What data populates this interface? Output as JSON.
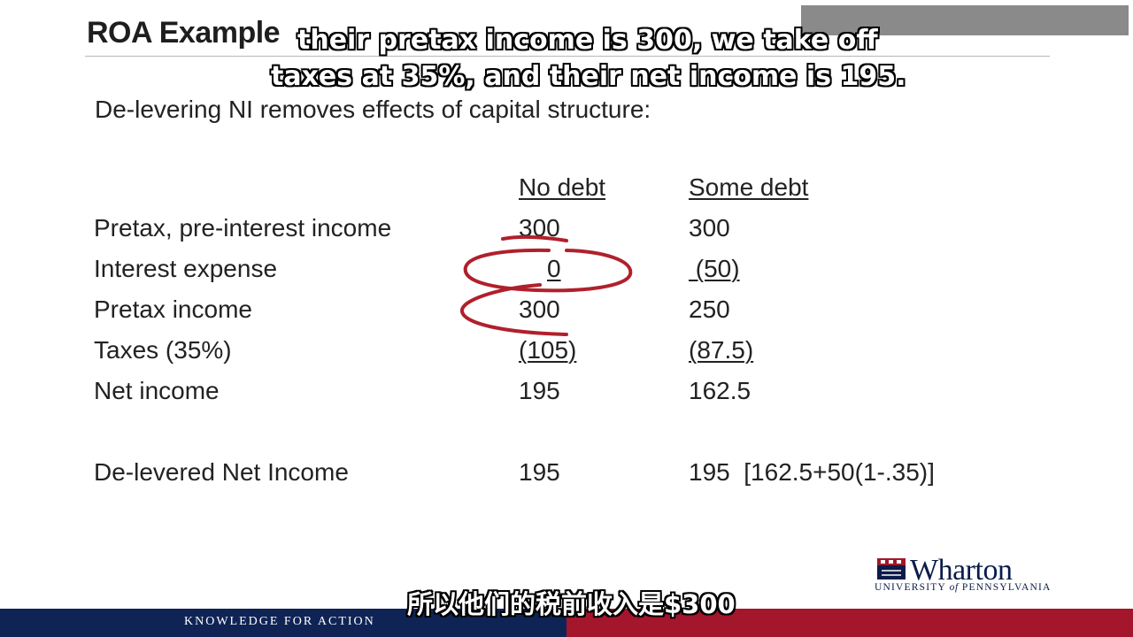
{
  "slide": {
    "title": "ROA Example",
    "lead": "De-levering NI removes effects of capital structure:"
  },
  "table": {
    "col_headers": [
      "No debt",
      "Some debt"
    ],
    "rows": [
      {
        "label": "Pretax, pre-interest income",
        "no_debt": "300",
        "some_debt": "300"
      },
      {
        "label": "Interest expense",
        "no_debt": "0",
        "some_debt": " (50)"
      },
      {
        "label": "Pretax income",
        "no_debt": "300",
        "some_debt": "250"
      },
      {
        "label": "Taxes (35%)",
        "no_debt": "(105)",
        "some_debt": "(87.5)"
      },
      {
        "label": "Net income",
        "no_debt": "195",
        "some_debt": "162.5"
      },
      {
        "label": "De-levered Net Income",
        "no_debt": "195",
        "some_debt": "195  [162.5+50(1-.35)]"
      }
    ]
  },
  "subtitles": {
    "english_line_1": "their pretax income is 300, we take off",
    "english_line_2": "taxes at 35%, and their net income is 195.",
    "chinese": "所以他们的税前收入是$300"
  },
  "logo": {
    "word": "Wharton",
    "university_prefix": "UNIVERSITY",
    "university_of": "of",
    "university_suffix": "PENNSYLVANIA"
  },
  "footer": {
    "tagline": "KNOWLEDGE FOR ACTION"
  },
  "colors": {
    "annotation": "#b0202c",
    "footer_navy": "#0f2454",
    "footer_red": "#a3162b",
    "logo_navy": "#0b1c4a"
  }
}
